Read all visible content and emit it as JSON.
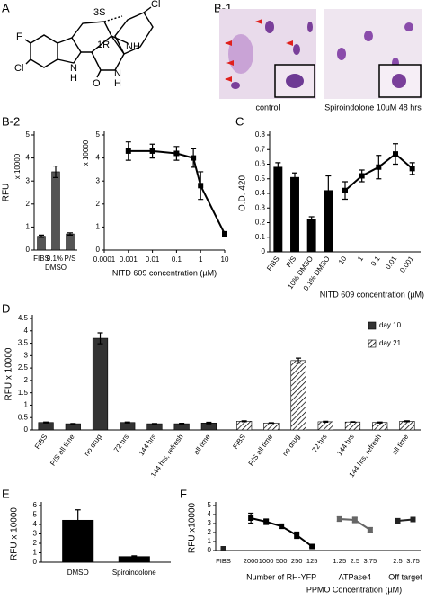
{
  "figure": {
    "panels": [
      "A",
      "B-1",
      "B-2",
      "C",
      "D",
      "E",
      "F"
    ],
    "structure_labels": [
      "F",
      "Cl",
      "3S",
      "NH",
      "Cl",
      "1R",
      "N",
      "H",
      "O",
      "N",
      "H"
    ],
    "micrograph_captions": [
      "control",
      "Spiroindolone 10uM 48 hrs"
    ]
  },
  "chart_data": [
    {
      "type": "bar",
      "ylabel": "RFU",
      "annotation": "x 10000",
      "categories": [
        "FIBS",
        "0.1% DMSO",
        "P/S"
      ],
      "values": [
        0.6,
        3.4,
        0.7
      ],
      "errors": [
        0.05,
        0.25,
        0.05
      ],
      "color": "#555555",
      "ylim": [
        0,
        5
      ],
      "yticks": [
        0,
        1,
        2,
        3,
        4,
        5
      ]
    },
    {
      "type": "line",
      "annotation": "x 10000",
      "xlog": true,
      "x": [
        0.001,
        0.01,
        0.1,
        0.5,
        1,
        10
      ],
      "values": [
        4.3,
        4.3,
        4.2,
        4.0,
        2.8,
        0.7
      ],
      "errors": [
        0.4,
        0.3,
        0.3,
        0.4,
        0.6,
        0.1
      ],
      "color": "#000000",
      "xlim": [
        0.0001,
        10
      ],
      "xticks": [
        0.0001,
        0.001,
        0.01,
        0.1,
        1,
        10
      ],
      "xlabel": "NITD 609 concentration (µM)",
      "ylim": [
        0,
        5
      ],
      "yticks": [
        0,
        1,
        2,
        3,
        4,
        5
      ]
    },
    {
      "type": "bar_line",
      "ylabel": "O.D. 420",
      "xlabel": "NITD 609 concentration (µM)",
      "categories": [
        "FIBS",
        "P/S",
        "10% DMSO",
        "0.1% DMSO",
        "10",
        "1",
        "0.1",
        "0.01",
        "0.001"
      ],
      "series": [
        {
          "mark": "bar",
          "color": "#000000",
          "values": [
            0.58,
            0.51,
            0.22,
            0.42,
            null,
            null,
            null,
            null,
            null
          ],
          "errors": [
            0.03,
            0.03,
            0.02,
            0.1,
            null,
            null,
            null,
            null,
            null
          ]
        },
        {
          "mark": "line",
          "color": "#000000",
          "values": [
            null,
            null,
            null,
            null,
            0.42,
            0.52,
            0.58,
            0.67,
            0.57
          ],
          "errors": [
            null,
            null,
            null,
            null,
            0.06,
            0.04,
            0.08,
            0.07,
            0.04
          ]
        }
      ],
      "ylim": [
        0,
        0.8
      ],
      "yticks": [
        0,
        0.1,
        0.2,
        0.3,
        0.4,
        0.5,
        0.6,
        0.7,
        0.8
      ]
    },
    {
      "type": "bar",
      "ylabel": "RFU x 10000",
      "categories": [
        "FIBS",
        "P/S all time",
        "no drug",
        "72 hrs",
        "144 hrs",
        "144 hrs, refresh",
        "all time",
        "FIBS",
        "P/S all time",
        "no drug",
        "72 hrs",
        "144 hrs",
        "144 hrs, refresh",
        "all time"
      ],
      "series": [
        {
          "name": "day 10",
          "color": "#333333",
          "values": [
            0.3,
            0.25,
            3.7,
            0.3,
            0.25,
            0.25,
            0.28,
            null,
            null,
            null,
            null,
            null,
            null,
            null
          ],
          "errors": [
            0.02,
            0.01,
            0.22,
            0.02,
            0.01,
            0.02,
            0.03,
            null,
            null,
            null,
            null,
            null,
            null,
            null
          ]
        },
        {
          "name": "day 21",
          "color": "#ffffff",
          "pattern": "hatch",
          "values": [
            null,
            null,
            null,
            null,
            null,
            null,
            null,
            0.35,
            0.28,
            2.8,
            0.33,
            0.32,
            0.3,
            0.35
          ],
          "errors": [
            null,
            null,
            null,
            null,
            null,
            null,
            null,
            0.02,
            0.01,
            0.1,
            0.02,
            0.01,
            0.02,
            0.02
          ]
        }
      ],
      "legend": "upper right",
      "ylim": [
        0,
        4.5
      ],
      "yticks": [
        0,
        0.5,
        1,
        1.5,
        2,
        2.5,
        3,
        3.5,
        4,
        4.5
      ]
    },
    {
      "type": "bar",
      "ylabel": "RFU x 10000",
      "categories": [
        "DMSO",
        "Spiroindolone"
      ],
      "values": [
        4.45,
        0.6
      ],
      "errors": [
        1.1,
        0.08
      ],
      "color": "#000000",
      "ylim": [
        0,
        6
      ],
      "yticks": [
        0,
        1,
        2,
        3,
        4,
        5,
        6
      ]
    },
    {
      "type": "line",
      "ylabel": "RFU x10000",
      "xlabel": "PPMO Concentration (µM)",
      "categories": [
        "FIBS",
        "2000",
        "1000",
        "500",
        "250",
        "125",
        "1.25",
        "2.5",
        "3.75",
        "2.5",
        "3.75"
      ],
      "series": [
        {
          "color": "#222222",
          "values": [
            0.2,
            null,
            null,
            null,
            null,
            null,
            null,
            null,
            null,
            null,
            null
          ],
          "errors": [
            0.05,
            null,
            null,
            null,
            null,
            null,
            null,
            null,
            null,
            null,
            null
          ]
        },
        {
          "name": "Number of RH-YFP",
          "color": "#000000",
          "values": [
            null,
            3.6,
            3.2,
            2.7,
            1.7,
            0.45,
            null,
            null,
            null,
            null,
            null
          ],
          "errors": [
            null,
            0.55,
            0.3,
            0.25,
            0.35,
            0.1,
            null,
            null,
            null,
            null,
            null
          ]
        },
        {
          "name": "ATPase4",
          "color": "#666666",
          "values": [
            null,
            null,
            null,
            null,
            null,
            null,
            3.5,
            3.4,
            2.3,
            null,
            null
          ],
          "errors": [
            null,
            null,
            null,
            null,
            null,
            null,
            0.25,
            0.3,
            0.25,
            null,
            null
          ]
        },
        {
          "name": "Off target",
          "color": "#222222",
          "values": [
            null,
            null,
            null,
            null,
            null,
            null,
            null,
            null,
            null,
            3.3,
            3.45
          ],
          "errors": [
            null,
            null,
            null,
            null,
            null,
            null,
            null,
            null,
            null,
            0.25,
            0.1
          ]
        }
      ],
      "ylim": [
        0,
        5
      ],
      "yticks": [
        0,
        1,
        2,
        3,
        4,
        5
      ]
    }
  ]
}
